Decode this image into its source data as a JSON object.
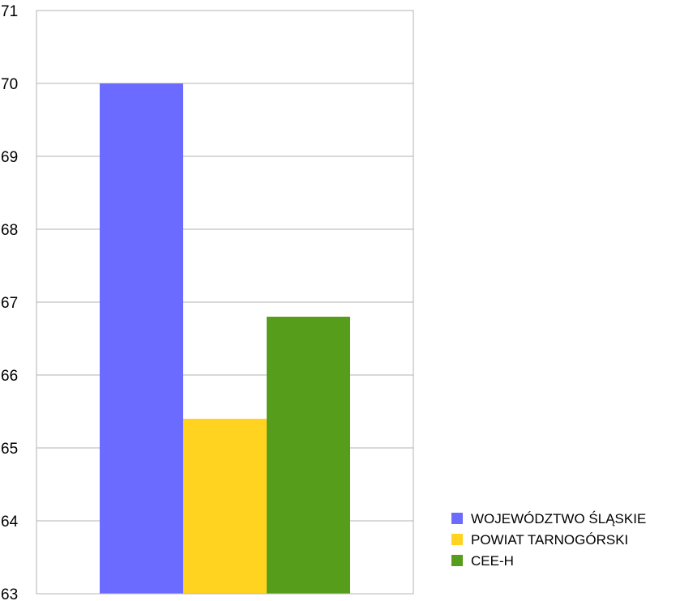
{
  "chart_data": {
    "type": "bar",
    "categories": [
      ""
    ],
    "series": [
      {
        "name": "WOJEWÓDZTWO ŚLĄSKIE",
        "values": [
          70.0
        ],
        "color": "#6b6bff"
      },
      {
        "name": "POWIAT TARNOGÓRSKI",
        "values": [
          65.4
        ],
        "color": "#ffd320"
      },
      {
        "name": "CEE-H",
        "values": [
          66.8
        ],
        "color": "#579d1c"
      }
    ],
    "ylim": [
      63,
      71
    ],
    "yticks": [
      63,
      64,
      65,
      66,
      67,
      68,
      69,
      70,
      71
    ],
    "ytick_labels": [
      "63",
      "64",
      "65",
      "66",
      "67",
      "68",
      "69",
      "70",
      "71"
    ],
    "grid": true,
    "legend": "right-bottom"
  }
}
